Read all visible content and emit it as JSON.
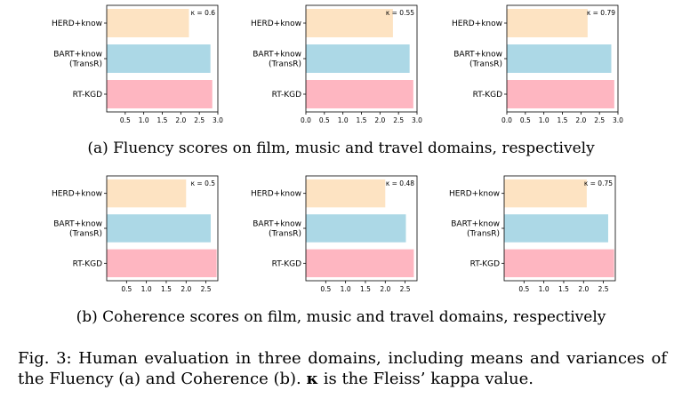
{
  "chart_data": [
    {
      "type": "bar",
      "orientation": "horizontal",
      "categories": [
        "HERD+know",
        "BART+know\n(TransR)",
        "RT-KGD"
      ],
      "values": [
        2.22,
        2.8,
        2.85
      ],
      "colors": [
        "#fde3c2",
        "#acd8e6",
        "#feb6c1"
      ],
      "annotation": "κ = 0.6",
      "xticks": [
        "0.5",
        "1.0",
        "1.5",
        "2.0",
        "2.5",
        "3.0"
      ],
      "xlim": [
        0,
        3.0
      ]
    },
    {
      "type": "bar",
      "orientation": "horizontal",
      "categories": [
        "HERD+know",
        "BART+know\n(TransR)",
        "RT-KGD"
      ],
      "values": [
        2.35,
        2.8,
        2.9
      ],
      "colors": [
        "#fde3c2",
        "#acd8e6",
        "#feb6c1"
      ],
      "annotation": "κ = 0.55",
      "xticks": [
        "0.0",
        "0.5",
        "1.0",
        "1.5",
        "2.0",
        "2.5",
        "3.0"
      ],
      "xlim": [
        0,
        3.0
      ]
    },
    {
      "type": "bar",
      "orientation": "horizontal",
      "categories": [
        "HERD+know",
        "BART+know\n(TransR)",
        "RT-KGD"
      ],
      "values": [
        2.18,
        2.82,
        2.9
      ],
      "colors": [
        "#fde3c2",
        "#acd8e6",
        "#feb6c1"
      ],
      "annotation": "κ = 0.79",
      "xticks": [
        "0.0",
        "0.5",
        "1.0",
        "1.5",
        "2.0",
        "2.5",
        "3.0"
      ],
      "xlim": [
        0,
        3.0
      ]
    },
    {
      "type": "bar",
      "orientation": "horizontal",
      "categories": [
        "HERD+know",
        "BART+know\n(TransR)",
        "RT-KGD"
      ],
      "values": [
        2.0,
        2.62,
        2.77
      ],
      "colors": [
        "#fde3c2",
        "#acd8e6",
        "#feb6c1"
      ],
      "annotation": "κ = 0.5",
      "xticks": [
        "0.5",
        "1.0",
        "1.5",
        "2.0",
        "2.5"
      ],
      "xlim": [
        0,
        2.8
      ]
    },
    {
      "type": "bar",
      "orientation": "horizontal",
      "categories": [
        "HERD+know",
        "BART+know\n(TransR)",
        "RT-KGD"
      ],
      "values": [
        2.0,
        2.52,
        2.72
      ],
      "colors": [
        "#fde3c2",
        "#acd8e6",
        "#feb6c1"
      ],
      "annotation": "κ = 0.48",
      "xticks": [
        "0.5",
        "1.0",
        "1.5",
        "2.0",
        "2.5"
      ],
      "xlim": [
        0,
        2.8
      ]
    },
    {
      "type": "bar",
      "orientation": "horizontal",
      "categories": [
        "HERD+know",
        "BART+know\n(TransR)",
        "RT-KGD"
      ],
      "values": [
        2.08,
        2.62,
        2.77
      ],
      "colors": [
        "#fde3c2",
        "#acd8e6",
        "#feb6c1"
      ],
      "annotation": "κ = 0.75",
      "xticks": [
        "0.5",
        "1.0",
        "1.5",
        "2.0",
        "2.5"
      ],
      "xlim": [
        0,
        2.8
      ]
    }
  ],
  "captions": {
    "a": "(a) Fluency scores on film, music and travel domains, respectively",
    "b": "(b) Coherence scores on film, music and travel domains, respectively",
    "fig_prefix": "Fig. 3: Human evaluation in three domains, including means and variances of the Fluency (a) and Coherence (b). ",
    "fig_kappa": "κ",
    "fig_suffix": " is the Fleiss’ kappa value."
  }
}
